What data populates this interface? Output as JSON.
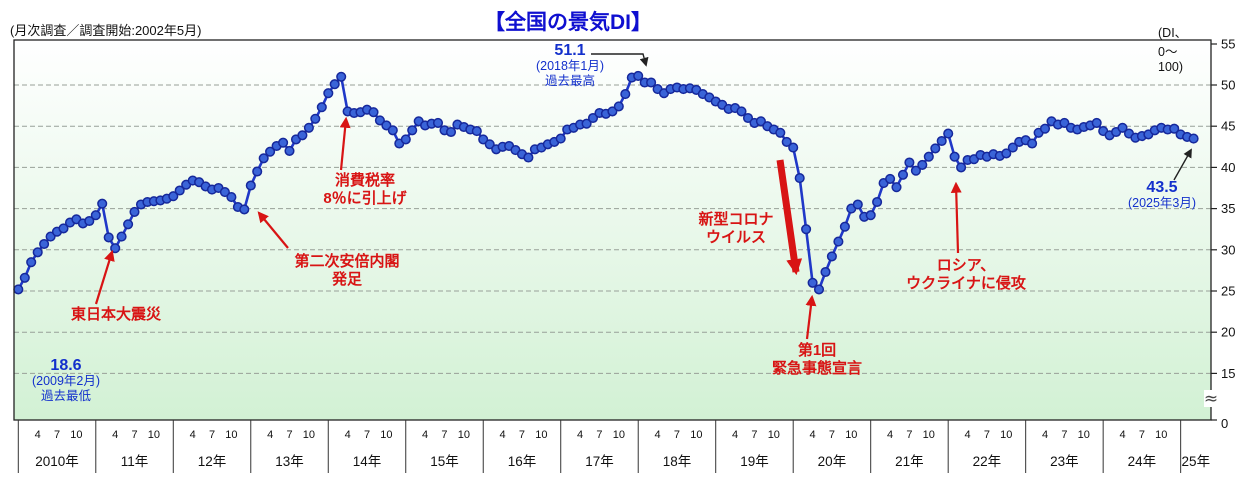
{
  "title": "【全国の景気DI】",
  "header": {
    "survey_note": "(月次調査／調査開始:2002年5月)",
    "range_note": "(DI、0〜100)"
  },
  "chart_data": {
    "type": "line",
    "series_name": "全国の景気DI",
    "x_unit": "month",
    "start": "2010-01",
    "end": "2025-03",
    "ylim_shown": [
      15,
      55
    ],
    "axis_break_below": 15,
    "grid": "horizontal dashed every 5",
    "legend": "none",
    "y_tick_labels": [
      "55",
      "50",
      "45",
      "40",
      "35",
      "30",
      "25",
      "20",
      "15",
      "0"
    ],
    "x_axis": {
      "quarter_tick_labels": [
        "4",
        "7",
        "10"
      ],
      "year_labels": [
        "2010年",
        "11年",
        "12年",
        "13年",
        "14年",
        "15年",
        "16年",
        "17年",
        "18年",
        "19年",
        "20年",
        "21年",
        "22年",
        "23年",
        "24年",
        "25年"
      ]
    },
    "values": [
      25.2,
      26.6,
      28.5,
      29.7,
      30.7,
      31.6,
      32.2,
      32.6,
      33.3,
      33.7,
      33.2,
      33.5,
      34.2,
      35.6,
      31.5,
      30.2,
      31.6,
      33.1,
      34.6,
      35.5,
      35.8,
      35.9,
      36.0,
      36.2,
      36.5,
      37.2,
      37.9,
      38.4,
      38.2,
      37.7,
      37.3,
      37.5,
      37.0,
      36.4,
      35.2,
      34.9,
      37.8,
      39.5,
      41.1,
      41.9,
      42.6,
      43.0,
      42.0,
      43.4,
      43.9,
      44.8,
      45.9,
      47.3,
      49.0,
      50.1,
      51.0,
      46.8,
      46.6,
      46.7,
      47.0,
      46.7,
      45.7,
      45.1,
      44.5,
      42.9,
      43.4,
      44.5,
      45.6,
      45.1,
      45.3,
      45.4,
      44.5,
      44.3,
      45.2,
      44.9,
      44.6,
      44.4,
      43.4,
      42.8,
      42.2,
      42.5,
      42.6,
      42.1,
      41.6,
      41.2,
      42.2,
      42.4,
      42.8,
      43.1,
      43.5,
      44.6,
      44.8,
      45.2,
      45.3,
      46.0,
      46.6,
      46.5,
      46.8,
      47.4,
      48.9,
      50.9,
      51.1,
      50.3,
      50.3,
      49.5,
      49.0,
      49.5,
      49.7,
      49.5,
      49.6,
      49.4,
      48.9,
      48.5,
      48.0,
      47.6,
      47.1,
      47.2,
      46.8,
      46.0,
      45.4,
      45.6,
      45.0,
      44.6,
      44.2,
      43.1,
      42.4,
      38.7,
      32.5,
      26.0,
      25.2,
      27.3,
      29.2,
      31.0,
      32.8,
      35.0,
      35.5,
      34.0,
      34.2,
      35.8,
      38.1,
      38.6,
      37.6,
      39.1,
      40.6,
      39.6,
      40.3,
      41.3,
      42.3,
      43.2,
      44.1,
      41.3,
      40.0,
      40.9,
      41.0,
      41.5,
      41.3,
      41.6,
      41.4,
      41.7,
      42.4,
      43.1,
      43.3,
      42.9,
      44.2,
      44.7,
      45.6,
      45.2,
      45.4,
      44.8,
      44.6,
      44.9,
      45.1,
      45.4,
      44.4,
      43.9,
      44.3,
      44.8,
      44.1,
      43.6,
      43.8,
      44.0,
      44.5,
      44.8,
      44.6,
      44.7,
      44.0,
      43.7,
      43.5
    ]
  },
  "annotations": {
    "record_low": {
      "value": "18.6",
      "date": "(2009年2月)",
      "label": "過去最低"
    },
    "record_high": {
      "value": "51.1",
      "date": "(2018年1月)",
      "label": "過去最高"
    },
    "latest": {
      "value": "43.5",
      "date": "(2025年3月)"
    },
    "events": [
      {
        "id": "tohoku",
        "line1": "東日本大震災",
        "line2": ""
      },
      {
        "id": "abe",
        "line1": "第二次安倍内閣",
        "line2": "発足"
      },
      {
        "id": "tax",
        "line1": "消費税率",
        "line2": "8％に引上げ"
      },
      {
        "id": "corona",
        "line1": "新型コロナ",
        "line2": "ウイルス"
      },
      {
        "id": "emergency",
        "line1": "第1回",
        "line2": "緊急事態宣言"
      },
      {
        "id": "russia",
        "line1": "ロシア、",
        "line2": "ウクライナに侵攻"
      }
    ]
  },
  "colors": {
    "title_blue": "#0f0fd0",
    "annotation_blue": "#1330cc",
    "annotation_red": "#d81414",
    "line_blue": "#2038c8",
    "marker_fill": "#3a64d8",
    "marker_stroke": "#16289b",
    "grid_gray": "#98a098",
    "axis_black": "#222222",
    "plot_bg_top": "#ffffff",
    "plot_bg_bottom": "#d2f1d4"
  }
}
